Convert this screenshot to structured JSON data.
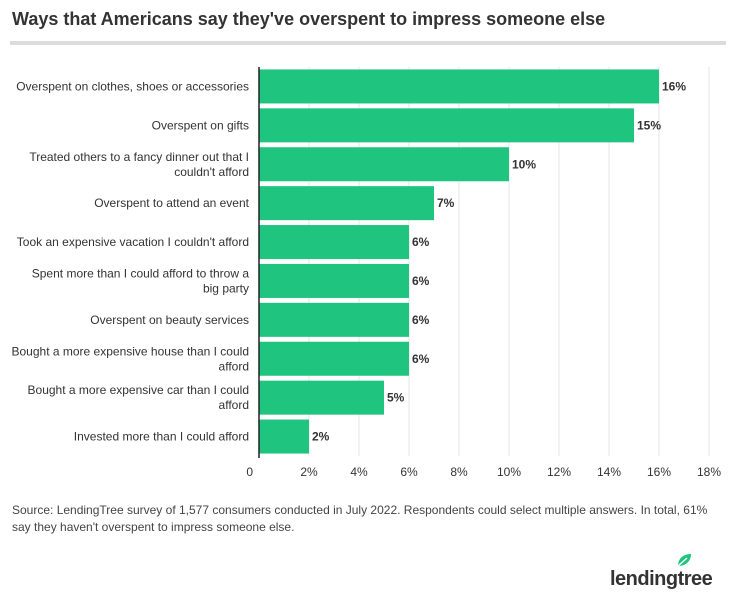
{
  "title": "Ways that Americans say they've overspent to impress someone else",
  "source_note": "Source: LendingTree survey of 1,577 consumers conducted in July 2022. Respondents could select multiple answers. In total, 61% say they haven't overspent to impress someone else.",
  "brand": "lendingtree",
  "colors": {
    "bar": "#1fc47f",
    "grid": "#e6e6e6",
    "axis": "#222222",
    "leaf": "#1fc47f"
  },
  "chart_data": {
    "type": "bar",
    "orientation": "horizontal",
    "categories": [
      [
        "Overspent on clothes, shoes or accessories"
      ],
      [
        "Overspent on gifts"
      ],
      [
        "Treated others to a fancy dinner out that I",
        "couldn't afford"
      ],
      [
        "Overspent to attend an event"
      ],
      [
        "Took an expensive vacation I couldn't afford"
      ],
      [
        "Spent more than I could afford to throw a",
        "big party"
      ],
      [
        "Overspent on beauty services"
      ],
      [
        "Bought a more expensive house than I could",
        "afford"
      ],
      [
        "Bought a more expensive car than I could",
        "afford"
      ],
      [
        "Invested more than I could afford"
      ]
    ],
    "values": [
      16,
      15,
      10,
      7,
      6,
      6,
      6,
      6,
      5,
      2
    ],
    "value_labels": [
      "16%",
      "15%",
      "10%",
      "7%",
      "6%",
      "6%",
      "6%",
      "6%",
      "5%",
      "2%"
    ],
    "x_ticks": [
      0,
      2,
      4,
      6,
      8,
      10,
      12,
      14,
      16,
      18
    ],
    "x_tick_labels": [
      "0",
      "2%",
      "4%",
      "6%",
      "8%",
      "10%",
      "12%",
      "14%",
      "16%",
      "18%"
    ],
    "xlim": [
      0,
      18
    ],
    "grid": true
  }
}
